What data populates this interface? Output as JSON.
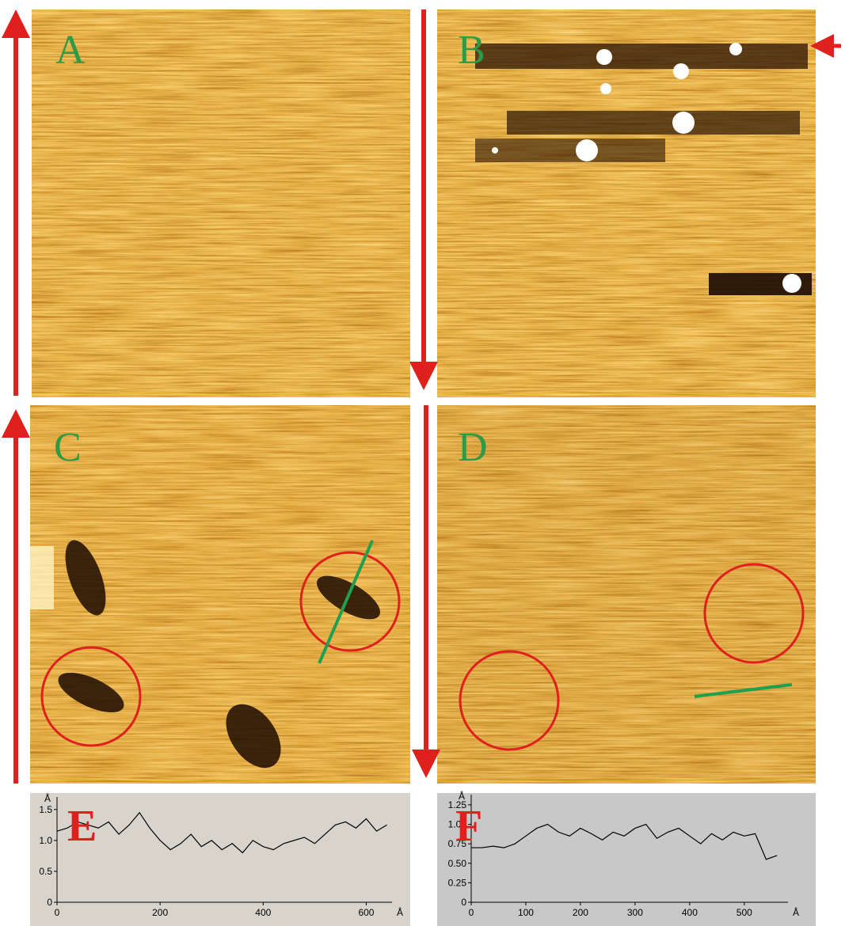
{
  "panels": [
    {
      "label": "A"
    },
    {
      "label": "B"
    },
    {
      "label": "C"
    },
    {
      "label": "D"
    }
  ],
  "chart_data": [
    {
      "type": "line",
      "panel_label": "E",
      "x_unit": "Å",
      "y_unit": "Å",
      "x": [
        0,
        20,
        40,
        60,
        80,
        100,
        120,
        140,
        160,
        180,
        200,
        220,
        240,
        260,
        280,
        300,
        320,
        340,
        360,
        380,
        400,
        420,
        440,
        460,
        480,
        500,
        520,
        540,
        560,
        580,
        600,
        620,
        640
      ],
      "series": [
        {
          "color": "#000000",
          "values": [
            1.15,
            1.2,
            1.3,
            1.25,
            1.2,
            1.3,
            1.1,
            1.25,
            1.45,
            1.2,
            1.0,
            0.85,
            0.95,
            1.1,
            0.9,
            1.0,
            0.85,
            0.95,
            0.8,
            1.0,
            0.9,
            0.85,
            0.95,
            1.0,
            1.05,
            0.95,
            1.1,
            1.25,
            1.3,
            1.2,
            1.35,
            1.15,
            1.25
          ]
        }
      ],
      "xlim": [
        0,
        650
      ],
      "ylim": [
        0,
        1.6
      ],
      "xticks": [
        0,
        200,
        400,
        600
      ],
      "yticks": [
        0,
        0.5,
        {
          "value": 1,
          "label": "1.0"
        },
        1.5
      ]
    },
    {
      "type": "line",
      "panel_label": "F",
      "x_unit": "Å",
      "y_unit": "Å",
      "x": [
        0,
        20,
        40,
        60,
        80,
        100,
        120,
        140,
        160,
        180,
        200,
        220,
        240,
        260,
        280,
        300,
        320,
        340,
        360,
        380,
        400,
        420,
        440,
        460,
        480,
        500,
        520,
        540,
        560
      ],
      "series": [
        {
          "color": "#000000",
          "values": [
            0.7,
            0.7,
            0.72,
            0.7,
            0.75,
            0.85,
            0.95,
            1.0,
            0.9,
            0.85,
            0.95,
            0.88,
            0.8,
            0.9,
            0.85,
            0.95,
            1.0,
            0.82,
            0.9,
            0.95,
            0.85,
            0.75,
            0.88,
            0.8,
            0.9,
            0.85,
            0.88,
            0.55,
            0.6
          ]
        }
      ],
      "xlim": [
        0,
        580
      ],
      "ylim": [
        0,
        1.3
      ],
      "xticks": [
        0,
        100,
        200,
        300,
        400,
        500
      ],
      "yticks": [
        0,
        0.25,
        {
          "value": 0.5,
          "label": "0.50"
        },
        0.75,
        {
          "value": 1,
          "label": "1.00"
        },
        1.25
      ]
    }
  ]
}
